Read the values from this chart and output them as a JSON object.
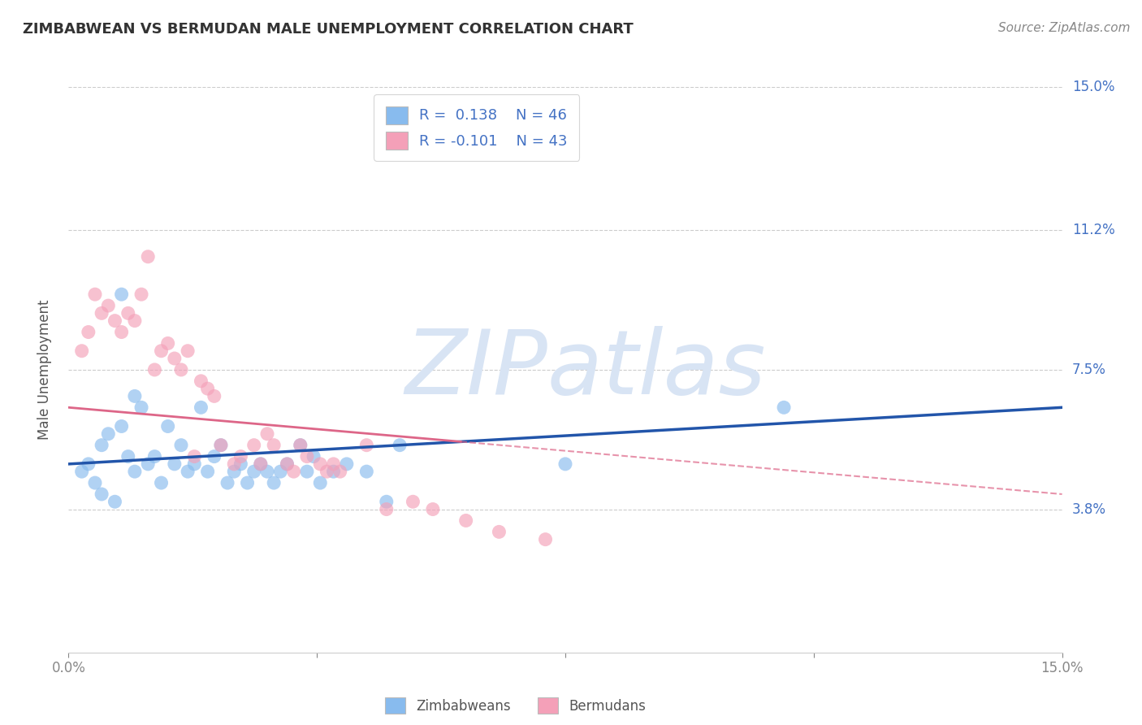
{
  "title": "ZIMBABWEAN VS BERMUDAN MALE UNEMPLOYMENT CORRELATION CHART",
  "source": "Source: ZipAtlas.com",
  "ylabel": "Male Unemployment",
  "xlim": [
    0.0,
    15.0
  ],
  "ylim": [
    0.0,
    15.0
  ],
  "ytick_labels": [
    "3.8%",
    "7.5%",
    "11.2%",
    "15.0%"
  ],
  "ytick_positions": [
    3.8,
    7.5,
    11.2,
    15.0
  ],
  "zimbabwean_R": 0.138,
  "zimbabwean_N": 46,
  "bermudan_R": -0.101,
  "bermudan_N": 43,
  "blue_color": "#88BBEE",
  "pink_color": "#F4A0B8",
  "blue_line_color": "#2255AA",
  "pink_line_color": "#DD6688",
  "watermark_color": "#D8E4F4",
  "background_color": "#FFFFFF",
  "grid_color": "#CCCCCC",
  "blue_line_y0": 5.0,
  "blue_line_y15": 6.5,
  "pink_line_y0": 6.5,
  "pink_line_y15": 4.2,
  "zimbabwean_x": [
    0.2,
    0.3,
    0.4,
    0.5,
    0.5,
    0.6,
    0.7,
    0.8,
    0.8,
    0.9,
    1.0,
    1.0,
    1.1,
    1.2,
    1.3,
    1.4,
    1.5,
    1.6,
    1.7,
    1.8,
    1.9,
    2.0,
    2.1,
    2.2,
    2.3,
    2.4,
    2.5,
    2.6,
    2.7,
    2.8,
    2.9,
    3.0,
    3.1,
    3.2,
    3.3,
    3.5,
    3.6,
    3.7,
    3.8,
    4.0,
    4.2,
    4.5,
    4.8,
    5.0,
    7.5,
    10.8
  ],
  "zimbabwean_y": [
    4.8,
    5.0,
    4.5,
    5.5,
    4.2,
    5.8,
    4.0,
    6.0,
    9.5,
    5.2,
    4.8,
    6.8,
    6.5,
    5.0,
    5.2,
    4.5,
    6.0,
    5.0,
    5.5,
    4.8,
    5.0,
    6.5,
    4.8,
    5.2,
    5.5,
    4.5,
    4.8,
    5.0,
    4.5,
    4.8,
    5.0,
    4.8,
    4.5,
    4.8,
    5.0,
    5.5,
    4.8,
    5.2,
    4.5,
    4.8,
    5.0,
    4.8,
    4.0,
    5.5,
    5.0,
    6.5
  ],
  "bermudan_x": [
    0.2,
    0.3,
    0.4,
    0.5,
    0.6,
    0.7,
    0.8,
    0.9,
    1.0,
    1.1,
    1.2,
    1.3,
    1.4,
    1.5,
    1.6,
    1.7,
    1.8,
    1.9,
    2.0,
    2.1,
    2.2,
    2.3,
    2.5,
    2.6,
    2.8,
    2.9,
    3.0,
    3.1,
    3.3,
    3.4,
    3.5,
    3.6,
    3.8,
    3.9,
    4.0,
    4.1,
    4.5,
    4.8,
    5.2,
    5.5,
    6.0,
    6.5,
    7.2
  ],
  "bermudan_y": [
    8.0,
    8.5,
    9.5,
    9.0,
    9.2,
    8.8,
    8.5,
    9.0,
    8.8,
    9.5,
    10.5,
    7.5,
    8.0,
    8.2,
    7.8,
    7.5,
    8.0,
    5.2,
    7.2,
    7.0,
    6.8,
    5.5,
    5.0,
    5.2,
    5.5,
    5.0,
    5.8,
    5.5,
    5.0,
    4.8,
    5.5,
    5.2,
    5.0,
    4.8,
    5.0,
    4.8,
    5.5,
    3.8,
    4.0,
    3.8,
    3.5,
    3.2,
    3.0
  ]
}
